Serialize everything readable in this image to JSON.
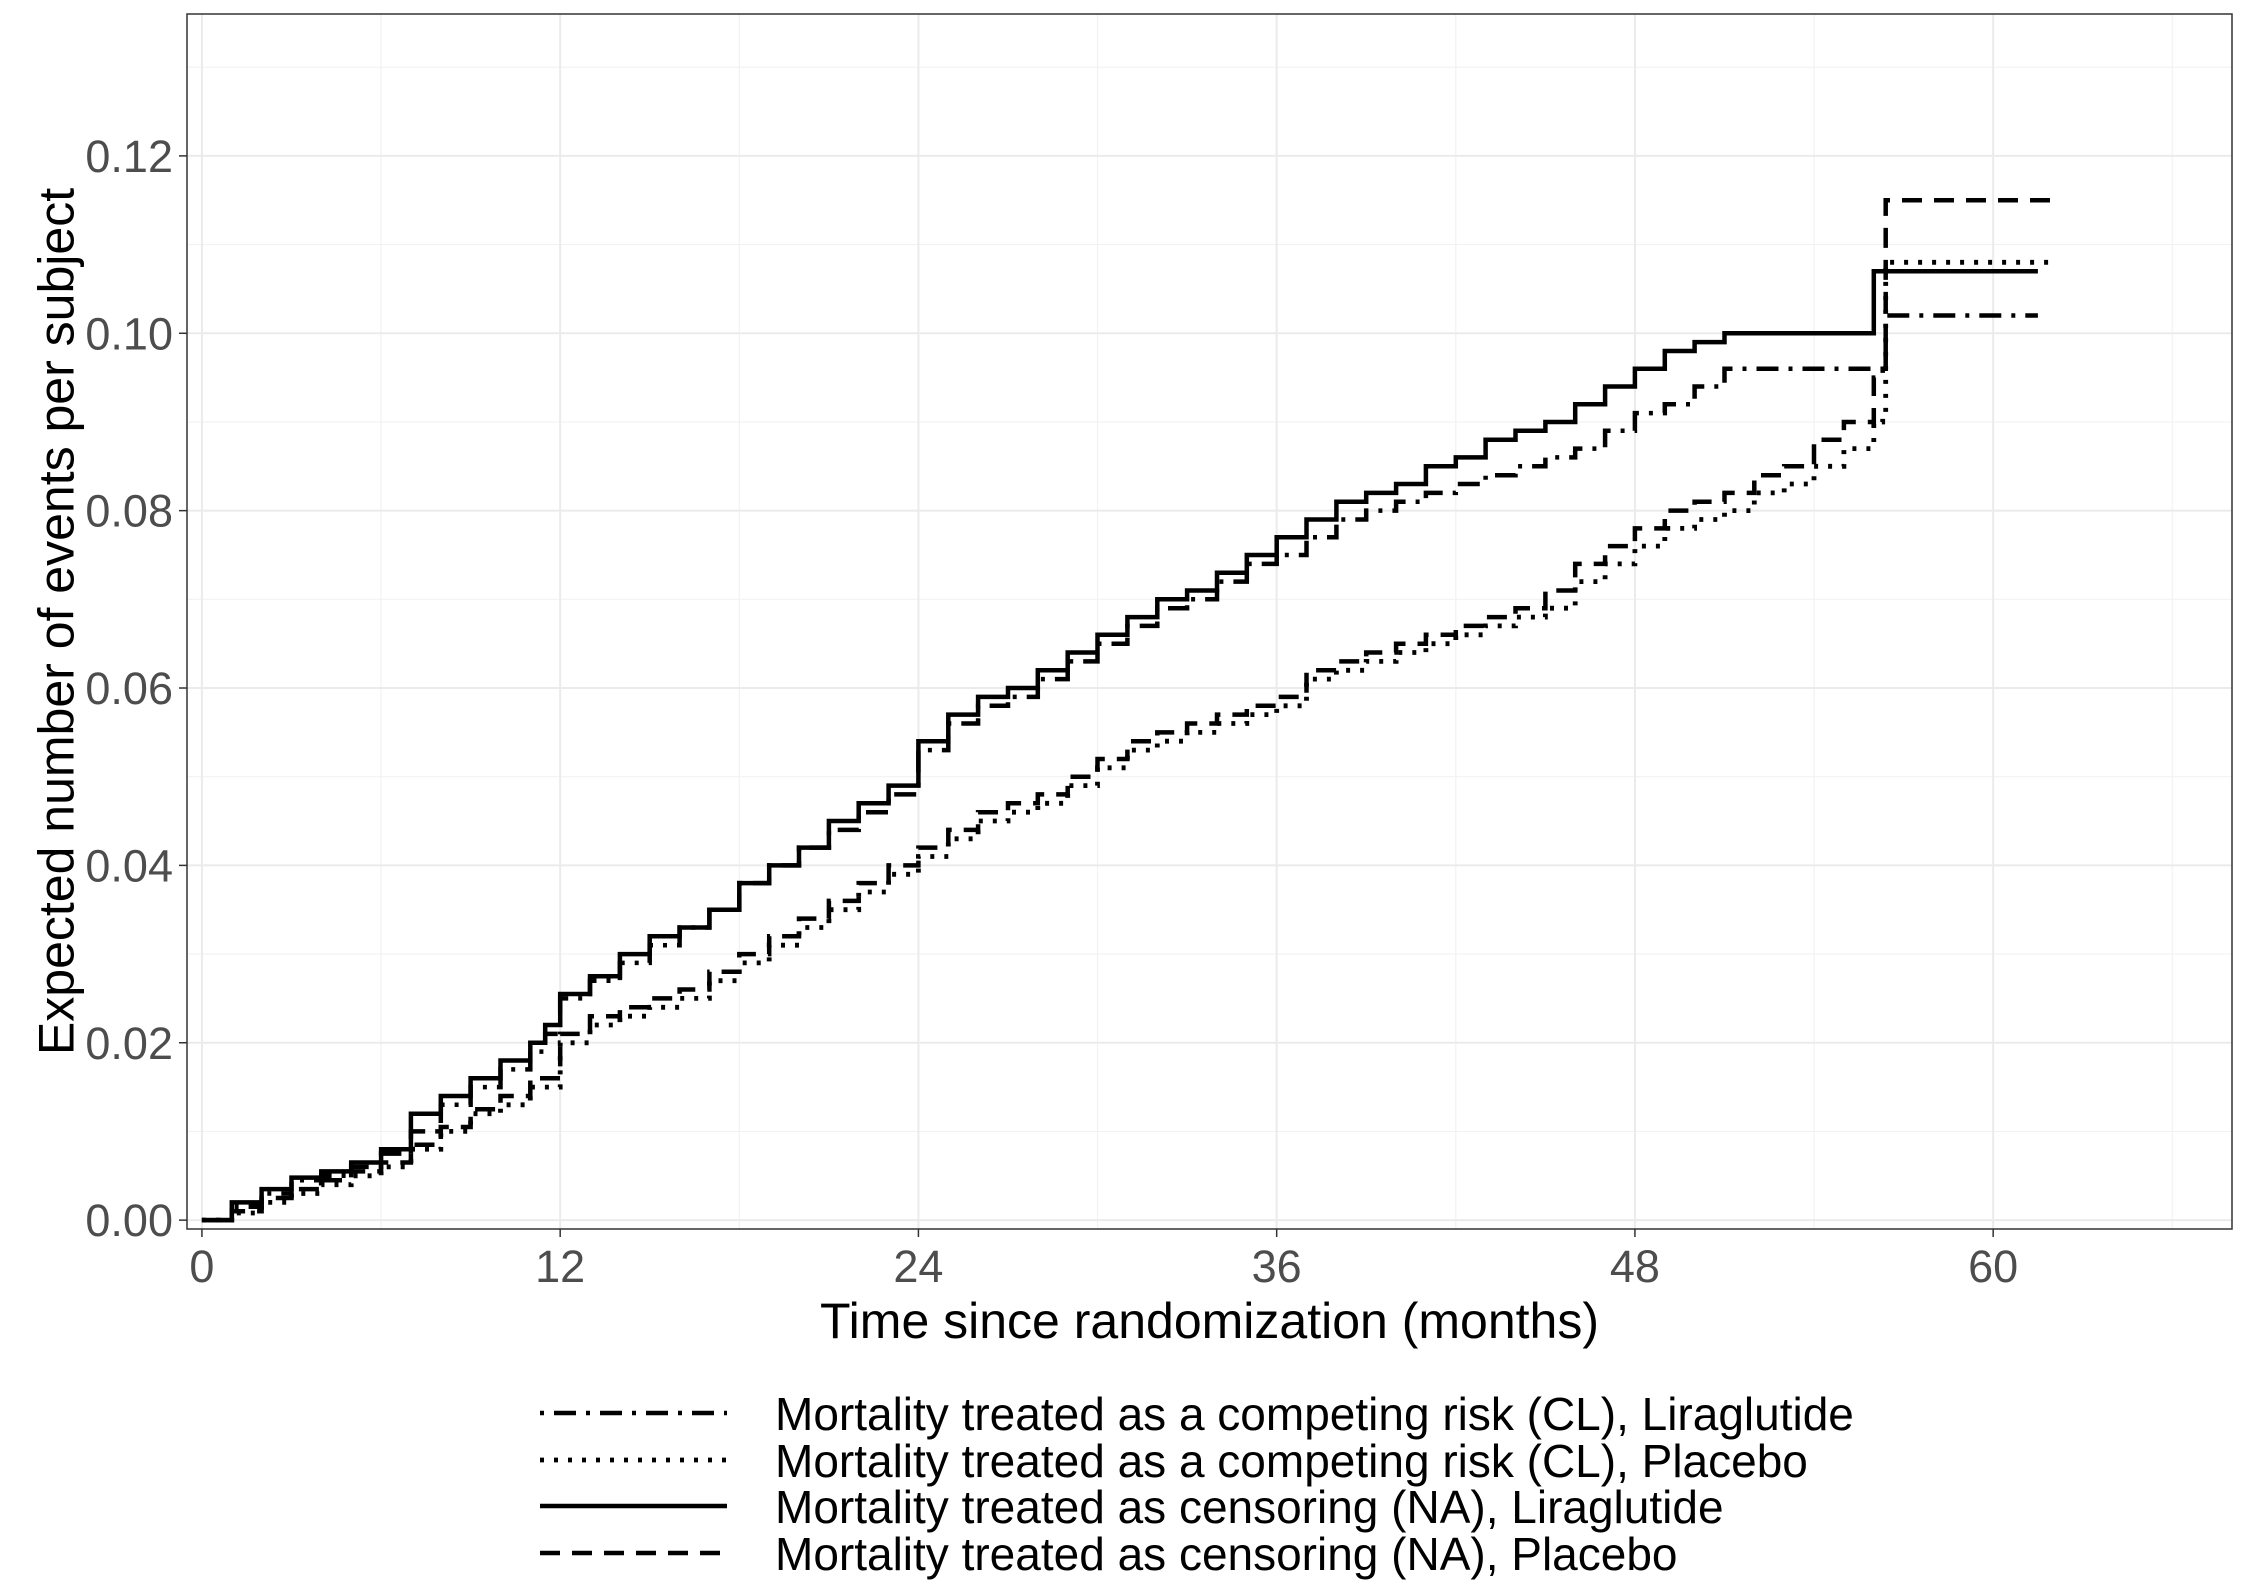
{
  "chart_data": {
    "type": "line",
    "title": "",
    "xlabel": "Time since randomization (months)",
    "ylabel": "Expected number of events per subject",
    "xlim": [
      -0.5,
      68
    ],
    "ylim": [
      -0.001,
      0.136
    ],
    "x_ticks": [
      0,
      12,
      24,
      36,
      48,
      60
    ],
    "y_ticks": [
      0.0,
      0.02,
      0.04,
      0.06,
      0.08,
      0.1,
      0.12
    ],
    "x_tick_labels": [
      "0",
      "12",
      "24",
      "36",
      "48",
      "60"
    ],
    "y_tick_labels": [
      "0.00",
      "0.02",
      "0.04",
      "0.06",
      "0.08",
      "0.10",
      "0.12"
    ],
    "grid": true,
    "legend_position": "bottom",
    "series": [
      {
        "name": "Mortality treated as a competing risk (CL), Liraglutide",
        "line_style": "dotdash",
        "color": "#000000",
        "x": [
          0,
          1,
          2,
          3,
          4,
          5,
          6,
          7,
          8,
          9,
          10,
          11,
          11.5,
          12,
          13,
          14,
          15,
          16,
          17,
          18,
          19,
          20,
          21,
          22,
          23,
          24,
          25,
          26,
          27,
          28,
          29,
          30,
          31,
          32,
          33,
          34,
          35,
          36,
          37,
          38,
          39,
          40,
          41,
          42,
          43,
          44,
          45,
          46,
          47,
          48,
          49,
          50,
          51,
          52,
          53,
          54,
          55,
          55.5,
          56,
          56.3,
          56.4,
          58,
          61.5
        ],
        "y": [
          0,
          0.0015,
          0.003,
          0.0045,
          0.005,
          0.006,
          0.0075,
          0.01,
          0.013,
          0.015,
          0.017,
          0.019,
          0.021,
          0.025,
          0.027,
          0.029,
          0.031,
          0.033,
          0.035,
          0.038,
          0.04,
          0.042,
          0.044,
          0.046,
          0.048,
          0.053,
          0.056,
          0.058,
          0.059,
          0.061,
          0.063,
          0.065,
          0.067,
          0.069,
          0.07,
          0.072,
          0.074,
          0.075,
          0.077,
          0.079,
          0.08,
          0.081,
          0.082,
          0.083,
          0.084,
          0.085,
          0.086,
          0.087,
          0.089,
          0.091,
          0.092,
          0.094,
          0.096,
          0.096,
          0.096,
          0.096,
          0.096,
          0.096,
          0.096,
          0.096,
          0.102,
          0.102,
          0.102
        ]
      },
      {
        "name": "Mortality treated as a competing risk (CL), Placebo",
        "line_style": "dotted",
        "color": "#000000",
        "x": [
          0,
          1,
          2,
          3,
          4,
          5,
          6,
          7,
          8,
          9,
          10,
          11,
          12,
          13,
          14,
          15,
          16,
          17,
          18,
          19,
          20,
          21,
          22,
          23,
          24,
          25,
          26,
          27,
          28,
          29,
          30,
          31,
          32,
          33,
          34,
          35,
          36,
          37,
          38,
          39,
          40,
          41,
          42,
          43,
          44,
          45,
          46,
          47,
          48,
          49,
          50,
          51,
          52,
          53,
          54,
          55,
          56,
          56.3,
          56.4,
          58,
          62
        ],
        "y": [
          0,
          0.0008,
          0.002,
          0.003,
          0.004,
          0.005,
          0.006,
          0.008,
          0.01,
          0.012,
          0.013,
          0.015,
          0.02,
          0.022,
          0.023,
          0.024,
          0.025,
          0.027,
          0.029,
          0.031,
          0.033,
          0.035,
          0.037,
          0.039,
          0.041,
          0.043,
          0.045,
          0.046,
          0.047,
          0.049,
          0.051,
          0.053,
          0.054,
          0.055,
          0.056,
          0.057,
          0.058,
          0.061,
          0.062,
          0.063,
          0.064,
          0.065,
          0.066,
          0.067,
          0.068,
          0.069,
          0.072,
          0.074,
          0.076,
          0.078,
          0.079,
          0.08,
          0.082,
          0.083,
          0.085,
          0.087,
          0.09,
          0.091,
          0.108,
          0.108,
          0.108
        ]
      },
      {
        "name": "Mortality treated as censoring (NA), Liraglutide",
        "line_style": "solid",
        "color": "#000000",
        "x": [
          0,
          1,
          2,
          3,
          4,
          5,
          6,
          7,
          8,
          9,
          10,
          11,
          11.5,
          12,
          13,
          14,
          15,
          16,
          17,
          18,
          19,
          20,
          21,
          22,
          23,
          24,
          25,
          26,
          27,
          28,
          29,
          30,
          31,
          32,
          33,
          34,
          35,
          36,
          37,
          38,
          39,
          40,
          41,
          42,
          43,
          44,
          45,
          46,
          47,
          48,
          49,
          50,
          51,
          52,
          53,
          54,
          55,
          55.9,
          56,
          58,
          61.5
        ],
        "y": [
          0,
          0.002,
          0.0035,
          0.0048,
          0.0055,
          0.0065,
          0.008,
          0.012,
          0.014,
          0.016,
          0.018,
          0.02,
          0.022,
          0.0255,
          0.0275,
          0.03,
          0.032,
          0.033,
          0.035,
          0.038,
          0.04,
          0.042,
          0.045,
          0.047,
          0.049,
          0.054,
          0.057,
          0.059,
          0.06,
          0.062,
          0.064,
          0.066,
          0.068,
          0.07,
          0.071,
          0.073,
          0.075,
          0.077,
          0.079,
          0.081,
          0.082,
          0.083,
          0.085,
          0.086,
          0.088,
          0.089,
          0.09,
          0.092,
          0.094,
          0.096,
          0.098,
          0.099,
          0.1,
          0.1,
          0.1,
          0.1,
          0.1,
          0.1,
          0.107,
          0.107,
          0.107
        ]
      },
      {
        "name": "Mortality treated as censoring (NA), Placebo",
        "line_style": "dashed",
        "color": "#000000",
        "x": [
          0,
          1,
          2,
          3,
          4,
          5,
          6,
          7,
          8,
          9,
          10,
          11,
          12,
          13,
          14,
          15,
          16,
          17,
          18,
          19,
          20,
          21,
          22,
          23,
          24,
          25,
          26,
          27,
          28,
          29,
          30,
          31,
          32,
          33,
          34,
          35,
          36,
          37,
          38,
          39,
          40,
          41,
          42,
          43,
          44,
          45,
          46,
          47,
          48,
          49,
          50,
          51,
          52,
          53,
          54,
          55,
          56,
          56.3,
          56.4,
          58,
          62
        ],
        "y": [
          0,
          0.001,
          0.0025,
          0.0035,
          0.0045,
          0.0055,
          0.0065,
          0.0085,
          0.0105,
          0.0125,
          0.014,
          0.016,
          0.021,
          0.023,
          0.024,
          0.025,
          0.026,
          0.028,
          0.03,
          0.032,
          0.034,
          0.036,
          0.038,
          0.04,
          0.042,
          0.044,
          0.046,
          0.047,
          0.048,
          0.05,
          0.052,
          0.054,
          0.055,
          0.056,
          0.057,
          0.058,
          0.059,
          0.062,
          0.063,
          0.064,
          0.065,
          0.066,
          0.067,
          0.068,
          0.069,
          0.071,
          0.074,
          0.076,
          0.078,
          0.08,
          0.081,
          0.082,
          0.084,
          0.085,
          0.088,
          0.09,
          0.095,
          0.096,
          0.115,
          0.115,
          0.115
        ]
      }
    ]
  }
}
